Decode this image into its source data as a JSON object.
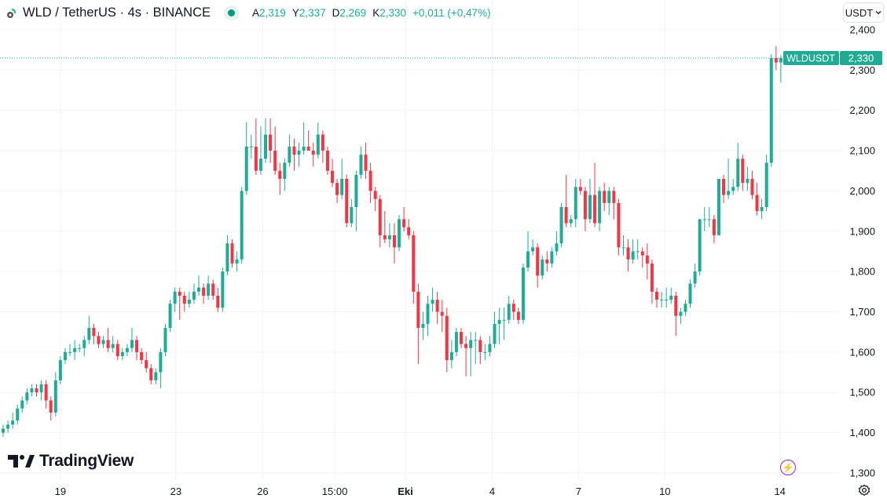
{
  "header": {
    "title": "WLD / TetherUS · 4s · BINANCE",
    "ohlc": [
      {
        "key": "A",
        "value": "2,319"
      },
      {
        "key": "Y",
        "value": "2,337"
      },
      {
        "key": "D",
        "value": "2,269"
      },
      {
        "key": "K",
        "value": "2,330"
      }
    ],
    "change": "+0,011 (+0,47%)",
    "live_icon": "status-dot-icon"
  },
  "currency_button": {
    "label": "USDT",
    "icon": "chevron-down-icon"
  },
  "price_tag": {
    "symbol": "WLDUSDT",
    "price": "2,330",
    "value": 2.33
  },
  "logo": {
    "text": "TradingView"
  },
  "colors": {
    "up": "#22ab94",
    "down": "#f23645",
    "grid": "#f0f3fa",
    "accent": "#22ab94"
  },
  "chart_data": {
    "type": "candlestick",
    "title": "WLD / TetherUS · 4s · BINANCE",
    "ylim": [
      1.28,
      2.42
    ],
    "y_ticks": [
      {
        "value": 2.4,
        "label": "2,400"
      },
      {
        "value": 2.3,
        "label": "2,300"
      },
      {
        "value": 2.2,
        "label": "2,200"
      },
      {
        "value": 2.1,
        "label": "2,100"
      },
      {
        "value": 2.0,
        "label": "2,000"
      },
      {
        "value": 1.9,
        "label": "1,900"
      },
      {
        "value": 1.8,
        "label": "1,800"
      },
      {
        "value": 1.7,
        "label": "1,700"
      },
      {
        "value": 1.6,
        "label": "1,600"
      },
      {
        "value": 1.5,
        "label": "1,500"
      },
      {
        "value": 1.4,
        "label": "1,400"
      },
      {
        "value": 1.3,
        "label": "1,300"
      }
    ],
    "x_ticks": [
      {
        "candle_index": 12,
        "label": "19",
        "bold": false
      },
      {
        "candle_index": 36.2,
        "label": "23",
        "bold": false
      },
      {
        "candle_index": 54.4,
        "label": "26",
        "bold": false
      },
      {
        "candle_index": 69.5,
        "label": "15:00",
        "bold": false
      },
      {
        "candle_index": 84.3,
        "label": "Eki",
        "bold": true
      },
      {
        "candle_index": 102.5,
        "label": "4",
        "bold": false
      },
      {
        "candle_index": 120.6,
        "label": "7",
        "bold": false
      },
      {
        "candle_index": 138.7,
        "label": "10",
        "bold": false
      },
      {
        "candle_index": 162.8,
        "label": "14",
        "bold": false
      }
    ],
    "candles_ohlc": [
      [
        1.4,
        1.42,
        1.39,
        1.41
      ],
      [
        1.41,
        1.43,
        1.4,
        1.42
      ],
      [
        1.42,
        1.45,
        1.41,
        1.43
      ],
      [
        1.43,
        1.47,
        1.42,
        1.46
      ],
      [
        1.46,
        1.49,
        1.45,
        1.48
      ],
      [
        1.48,
        1.51,
        1.47,
        1.5
      ],
      [
        1.5,
        1.52,
        1.49,
        1.51
      ],
      [
        1.51,
        1.52,
        1.49,
        1.5
      ],
      [
        1.5,
        1.53,
        1.48,
        1.52
      ],
      [
        1.52,
        1.53,
        1.46,
        1.48
      ],
      [
        1.48,
        1.49,
        1.43,
        1.45
      ],
      [
        1.45,
        1.55,
        1.44,
        1.53
      ],
      [
        1.53,
        1.59,
        1.52,
        1.58
      ],
      [
        1.58,
        1.61,
        1.57,
        1.6
      ],
      [
        1.6,
        1.62,
        1.59,
        1.6
      ],
      [
        1.6,
        1.63,
        1.58,
        1.61
      ],
      [
        1.61,
        1.62,
        1.6,
        1.61
      ],
      [
        1.61,
        1.64,
        1.59,
        1.63
      ],
      [
        1.63,
        1.69,
        1.62,
        1.66
      ],
      [
        1.66,
        1.67,
        1.62,
        1.64
      ],
      [
        1.64,
        1.65,
        1.61,
        1.62
      ],
      [
        1.62,
        1.64,
        1.61,
        1.63
      ],
      [
        1.63,
        1.66,
        1.6,
        1.61
      ],
      [
        1.61,
        1.64,
        1.6,
        1.62
      ],
      [
        1.62,
        1.63,
        1.58,
        1.59
      ],
      [
        1.59,
        1.61,
        1.58,
        1.6
      ],
      [
        1.6,
        1.62,
        1.59,
        1.61
      ],
      [
        1.61,
        1.66,
        1.6,
        1.63
      ],
      [
        1.63,
        1.64,
        1.58,
        1.6
      ],
      [
        1.6,
        1.61,
        1.57,
        1.58
      ],
      [
        1.58,
        1.6,
        1.55,
        1.56
      ],
      [
        1.56,
        1.57,
        1.52,
        1.53
      ],
      [
        1.53,
        1.56,
        1.52,
        1.55
      ],
      [
        1.55,
        1.61,
        1.51,
        1.6
      ],
      [
        1.6,
        1.67,
        1.59,
        1.66
      ],
      [
        1.66,
        1.73,
        1.65,
        1.72
      ],
      [
        1.72,
        1.76,
        1.7,
        1.75
      ],
      [
        1.75,
        1.76,
        1.68,
        1.74
      ],
      [
        1.74,
        1.75,
        1.7,
        1.72
      ],
      [
        1.72,
        1.75,
        1.71,
        1.73
      ],
      [
        1.73,
        1.77,
        1.72,
        1.75
      ],
      [
        1.75,
        1.79,
        1.74,
        1.76
      ],
      [
        1.76,
        1.77,
        1.72,
        1.74
      ],
      [
        1.74,
        1.79,
        1.73,
        1.77
      ],
      [
        1.77,
        1.78,
        1.73,
        1.74
      ],
      [
        1.74,
        1.76,
        1.7,
        1.71
      ],
      [
        1.71,
        1.81,
        1.7,
        1.8
      ],
      [
        1.8,
        1.89,
        1.79,
        1.87
      ],
      [
        1.87,
        1.88,
        1.81,
        1.82
      ],
      [
        1.82,
        1.85,
        1.8,
        1.83
      ],
      [
        1.83,
        2.01,
        1.82,
        2.0
      ],
      [
        2.0,
        2.17,
        1.99,
        2.11
      ],
      [
        2.11,
        2.14,
        2.08,
        2.11
      ],
      [
        2.11,
        2.18,
        2.04,
        2.05
      ],
      [
        2.05,
        2.16,
        2.04,
        2.08
      ],
      [
        2.08,
        2.18,
        2.07,
        2.14
      ],
      [
        2.14,
        2.18,
        2.07,
        2.1
      ],
      [
        2.1,
        2.16,
        2.04,
        2.05
      ],
      [
        2.05,
        2.07,
        1.99,
        2.03
      ],
      [
        2.03,
        2.08,
        2.0,
        2.07
      ],
      [
        2.07,
        2.14,
        2.06,
        2.11
      ],
      [
        2.11,
        2.13,
        2.05,
        2.09
      ],
      [
        2.09,
        2.12,
        2.06,
        2.1
      ],
      [
        2.1,
        2.17,
        2.09,
        2.11
      ],
      [
        2.11,
        2.15,
        2.1,
        2.1
      ],
      [
        2.1,
        2.12,
        2.06,
        2.09
      ],
      [
        2.09,
        2.17,
        2.08,
        2.14
      ],
      [
        2.14,
        2.15,
        2.07,
        2.1
      ],
      [
        2.1,
        2.11,
        2.04,
        2.05
      ],
      [
        2.05,
        2.08,
        2.01,
        2.02
      ],
      [
        2.02,
        2.03,
        1.97,
        1.99
      ],
      [
        1.99,
        2.08,
        1.98,
        2.03
      ],
      [
        2.03,
        2.04,
        1.91,
        1.92
      ],
      [
        1.92,
        1.98,
        1.91,
        1.96
      ],
      [
        1.96,
        2.05,
        1.9,
        2.04
      ],
      [
        2.04,
        2.11,
        2.03,
        2.09
      ],
      [
        2.09,
        2.12,
        2.03,
        2.05
      ],
      [
        2.05,
        2.07,
        1.97,
        2.0
      ],
      [
        2.0,
        2.01,
        1.95,
        1.98
      ],
      [
        1.98,
        1.99,
        1.86,
        1.89
      ],
      [
        1.89,
        1.95,
        1.87,
        1.88
      ],
      [
        1.88,
        1.92,
        1.86,
        1.89
      ],
      [
        1.89,
        1.92,
        1.82,
        1.86
      ],
      [
        1.86,
        1.94,
        1.85,
        1.93
      ],
      [
        1.93,
        1.96,
        1.9,
        1.91
      ],
      [
        1.91,
        1.93,
        1.88,
        1.89
      ],
      [
        1.89,
        1.9,
        1.72,
        1.75
      ],
      [
        1.75,
        1.77,
        1.57,
        1.66
      ],
      [
        1.66,
        1.7,
        1.63,
        1.67
      ],
      [
        1.67,
        1.74,
        1.64,
        1.72
      ],
      [
        1.72,
        1.76,
        1.7,
        1.73
      ],
      [
        1.73,
        1.75,
        1.67,
        1.7
      ],
      [
        1.7,
        1.73,
        1.65,
        1.69
      ],
      [
        1.69,
        1.71,
        1.55,
        1.58
      ],
      [
        1.58,
        1.63,
        1.56,
        1.6
      ],
      [
        1.6,
        1.66,
        1.59,
        1.65
      ],
      [
        1.65,
        1.66,
        1.61,
        1.62
      ],
      [
        1.62,
        1.64,
        1.54,
        1.61
      ],
      [
        1.61,
        1.65,
        1.54,
        1.63
      ],
      [
        1.63,
        1.65,
        1.57,
        1.63
      ],
      [
        1.63,
        1.64,
        1.57,
        1.6
      ],
      [
        1.6,
        1.62,
        1.58,
        1.6
      ],
      [
        1.6,
        1.64,
        1.59,
        1.62
      ],
      [
        1.62,
        1.7,
        1.61,
        1.67
      ],
      [
        1.67,
        1.71,
        1.62,
        1.68
      ],
      [
        1.68,
        1.71,
        1.63,
        1.68
      ],
      [
        1.68,
        1.74,
        1.67,
        1.72
      ],
      [
        1.72,
        1.73,
        1.68,
        1.7
      ],
      [
        1.7,
        1.71,
        1.67,
        1.68
      ],
      [
        1.68,
        1.82,
        1.67,
        1.81
      ],
      [
        1.81,
        1.9,
        1.8,
        1.85
      ],
      [
        1.85,
        1.88,
        1.84,
        1.86
      ],
      [
        1.86,
        1.87,
        1.76,
        1.79
      ],
      [
        1.79,
        1.84,
        1.78,
        1.83
      ],
      [
        1.83,
        1.85,
        1.8,
        1.82
      ],
      [
        1.82,
        1.86,
        1.81,
        1.85
      ],
      [
        1.85,
        1.9,
        1.84,
        1.87
      ],
      [
        1.87,
        1.97,
        1.86,
        1.96
      ],
      [
        1.96,
        2.04,
        1.91,
        1.92
      ],
      [
        1.92,
        1.94,
        1.91,
        1.93
      ],
      [
        1.93,
        2.03,
        1.91,
        2.01
      ],
      [
        2.01,
        2.03,
        1.99,
        2.0
      ],
      [
        2.0,
        2.01,
        1.9,
        1.93
      ],
      [
        1.93,
        2.03,
        1.92,
        1.99
      ],
      [
        1.99,
        2.07,
        1.91,
        1.92
      ],
      [
        1.92,
        2.01,
        1.9,
        2.0
      ],
      [
        2.0,
        2.02,
        1.95,
        1.97
      ],
      [
        1.97,
        2.01,
        1.94,
        2.0
      ],
      [
        2.0,
        2.01,
        1.93,
        1.97
      ],
      [
        1.97,
        1.98,
        1.84,
        1.86
      ],
      [
        1.86,
        1.89,
        1.84,
        1.86
      ],
      [
        1.86,
        1.88,
        1.8,
        1.83
      ],
      [
        1.83,
        1.88,
        1.82,
        1.85
      ],
      [
        1.85,
        1.88,
        1.83,
        1.85
      ],
      [
        1.85,
        1.86,
        1.81,
        1.84
      ],
      [
        1.84,
        1.87,
        1.78,
        1.82
      ],
      [
        1.82,
        1.83,
        1.72,
        1.75
      ],
      [
        1.75,
        1.76,
        1.71,
        1.73
      ],
      [
        1.73,
        1.75,
        1.71,
        1.73
      ],
      [
        1.73,
        1.76,
        1.71,
        1.73
      ],
      [
        1.73,
        1.76,
        1.72,
        1.74
      ],
      [
        1.74,
        1.75,
        1.64,
        1.69
      ],
      [
        1.69,
        1.71,
        1.67,
        1.7
      ],
      [
        1.7,
        1.73,
        1.69,
        1.72
      ],
      [
        1.72,
        1.78,
        1.71,
        1.77
      ],
      [
        1.77,
        1.82,
        1.76,
        1.8
      ],
      [
        1.8,
        1.93,
        1.79,
        1.93
      ],
      [
        1.93,
        1.96,
        1.9,
        1.93
      ],
      [
        1.93,
        1.96,
        1.91,
        1.93
      ],
      [
        1.93,
        1.94,
        1.87,
        1.89
      ],
      [
        1.89,
        2.03,
        1.89,
        2.03
      ],
      [
        2.03,
        2.04,
        1.97,
        1.99
      ],
      [
        1.99,
        2.08,
        1.98,
        2.0
      ],
      [
        2.0,
        2.03,
        1.99,
        2.01
      ],
      [
        2.01,
        2.12,
        2.0,
        2.08
      ],
      [
        2.08,
        2.09,
        2.0,
        2.02
      ],
      [
        2.02,
        2.06,
        2.0,
        2.03
      ],
      [
        2.03,
        2.05,
        1.98,
        1.99
      ],
      [
        1.99,
        2.02,
        1.94,
        1.95
      ],
      [
        1.95,
        1.98,
        1.93,
        1.96
      ],
      [
        1.96,
        2.09,
        1.95,
        2.07
      ],
      [
        2.07,
        2.34,
        2.06,
        2.33
      ],
      [
        2.33,
        2.36,
        2.3,
        2.319
      ],
      [
        2.319,
        2.337,
        2.269,
        2.33
      ]
    ]
  }
}
